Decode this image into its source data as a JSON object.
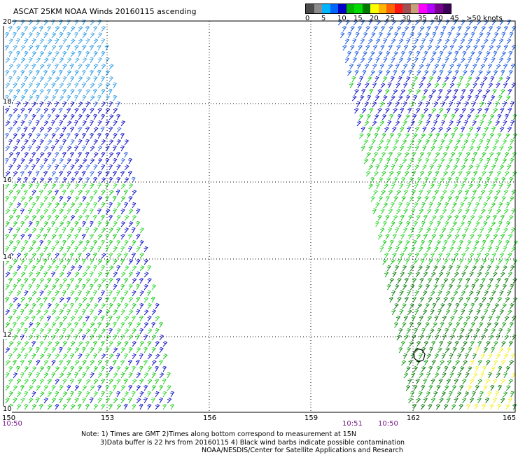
{
  "title": "ASCAT 25KM NOAA Winds 20160115 ascending",
  "legend": {
    "colors": [
      "#4b4b4b",
      "#8c8c8c",
      "#00b4ff",
      "#0064ff",
      "#0000c8",
      "#00b400",
      "#00dc00",
      "#007800",
      "#ffff00",
      "#ffb400",
      "#ff6400",
      "#ff1414",
      "#a05050",
      "#c8a078",
      "#ff00ff",
      "#b400ff",
      "#78008c",
      "#3c005a"
    ],
    "labels": [
      "0",
      "5",
      "10",
      "15",
      "20",
      "25",
      "30",
      "35",
      "40",
      "45",
      ">50 knots"
    ]
  },
  "lat_labels": [
    "20",
    "18",
    "16",
    "14",
    "12",
    "10"
  ],
  "lon_labels": [
    "150",
    "153",
    "156",
    "159",
    "162",
    "165"
  ],
  "times": {
    "left": "10:50",
    "right_a": "10:51",
    "right_b": "10:50"
  },
  "notes": {
    "line1": "Note: 1) Times are GMT 2)Times along bottom correspond to measurement at 15N",
    "line2": "3)Data buffer is 22 hrs from 20160115 4) Black wind barbs indicate possible contamination",
    "line3": "NOAA/NESDIS/Center for Satellite Applications and Research"
  }
}
